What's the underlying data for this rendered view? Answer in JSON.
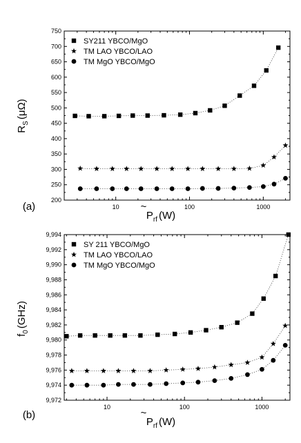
{
  "chart_data": [
    {
      "type": "scatter",
      "panel_label": "(a)",
      "ylabel": {
        "main": "R",
        "sub": "S",
        "unit": "(μΩ)"
      },
      "xlabel": {
        "main": "P",
        "sub": "rf",
        "unit": "(W)",
        "accent": "~"
      },
      "xscale": "log",
      "xlim": [
        2,
        2300
      ],
      "ylim": [
        200,
        750
      ],
      "x_ticks": [
        10,
        100,
        1000
      ],
      "x_tick_labels": [
        "10",
        "100",
        "1000"
      ],
      "y_ticks": [
        200,
        250,
        300,
        350,
        400,
        450,
        500,
        550,
        600,
        650,
        700,
        750
      ],
      "y_tick_labels": [
        "200",
        "250",
        "300",
        "350",
        "400",
        "450",
        "500",
        "550",
        "600",
        "650",
        "700",
        "750"
      ],
      "legend_position": "top-left",
      "series": [
        {
          "name": "SY211   YBCO/MgO",
          "marker": "square",
          "x": [
            2.8,
            4.3,
            7,
            11,
            17,
            27,
            45,
            75,
            120,
            190,
            300,
            480,
            750,
            1100,
            1600
          ],
          "y": [
            474,
            473,
            473,
            474,
            475,
            475,
            476,
            478,
            483,
            492,
            507,
            540,
            572,
            622,
            696
          ]
        },
        {
          "name": "TM LAO YBCO/LAO",
          "marker": "star",
          "x": [
            3.3,
            5.5,
            9,
            14,
            22,
            36,
            58,
            95,
            150,
            245,
            400,
            650,
            1000,
            1400,
            2000
          ],
          "y": [
            303,
            302,
            302,
            302,
            302,
            302,
            302,
            302,
            302,
            302,
            302,
            303,
            313,
            340,
            378
          ]
        },
        {
          "name": "TM MgO YBCO/MgO",
          "marker": "circle",
          "x": [
            3.3,
            5.5,
            9,
            14,
            22,
            36,
            58,
            95,
            150,
            245,
            400,
            650,
            1000,
            1400,
            2000
          ],
          "y": [
            237,
            237,
            237,
            237,
            237,
            237,
            237,
            237,
            238,
            238,
            239,
            241,
            244,
            252,
            271
          ]
        }
      ]
    },
    {
      "type": "scatter",
      "panel_label": "(b)",
      "ylabel": {
        "main": "f",
        "sub": "0",
        "unit": "(GHz)"
      },
      "xlabel": {
        "main": "P",
        "sub": "rf",
        "unit": "(W)",
        "accent": "~"
      },
      "xscale": "log",
      "xlim": [
        2.8,
        2300
      ],
      "ylim": [
        9.972,
        9.994
      ],
      "x_ticks": [
        10,
        100,
        1000
      ],
      "x_tick_labels": [
        "10",
        "100",
        "1000"
      ],
      "y_ticks": [
        9.972,
        9.974,
        9.976,
        9.978,
        9.98,
        9.982,
        9.984,
        9.986,
        9.988,
        9.99,
        9.992,
        9.994
      ],
      "y_tick_labels": [
        "9,972",
        "9,974",
        "9,976",
        "9,978",
        "9,980",
        "9,982",
        "9,984",
        "9,986",
        "9,988",
        "9,990",
        "9,992",
        "9,994"
      ],
      "legend_position": "top-left",
      "series": [
        {
          "name": "SY 211 YBCO/MgO",
          "marker": "square",
          "x": [
            3,
            4.5,
            7,
            11,
            17,
            27,
            45,
            75,
            120,
            190,
            300,
            480,
            750,
            1050,
            1500,
            2200
          ],
          "y": [
            9.9805,
            9.9806,
            9.9806,
            9.9806,
            9.9806,
            9.9806,
            9.9807,
            9.9808,
            9.981,
            9.9813,
            9.9817,
            9.9823,
            9.9835,
            9.9855,
            9.9885,
            9.994
          ]
        },
        {
          "name": "TM LAO YBCO/LAO",
          "marker": "star",
          "x": [
            3.5,
            5.5,
            9,
            14,
            22,
            36,
            58,
            95,
            150,
            245,
            400,
            650,
            1000,
            1400,
            2000
          ],
          "y": [
            9.9759,
            9.9759,
            9.9759,
            9.9759,
            9.9759,
            9.9759,
            9.976,
            9.9761,
            9.9762,
            9.9764,
            9.9767,
            9.977,
            9.9777,
            9.9795,
            9.9819
          ]
        },
        {
          "name": "TM MgO YBCO/MgO",
          "marker": "circle",
          "x": [
            3.5,
            5.5,
            9,
            14,
            22,
            36,
            58,
            95,
            150,
            245,
            400,
            650,
            1000,
            1400,
            2000
          ],
          "y": [
            9.974,
            9.974,
            9.974,
            9.9741,
            9.9741,
            9.9741,
            9.9742,
            9.9743,
            9.9744,
            9.9746,
            9.9749,
            9.9754,
            9.9761,
            9.9773,
            9.9793
          ]
        }
      ]
    }
  ]
}
